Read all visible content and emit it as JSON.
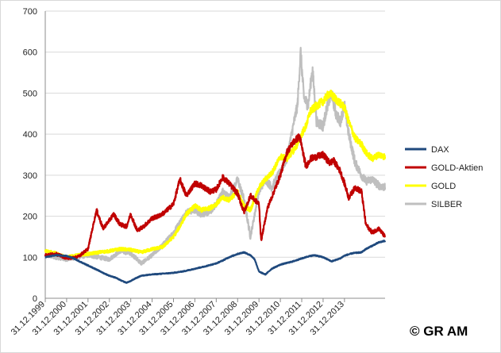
{
  "chart_data": {
    "type": "line",
    "title": "",
    "xlabel": "",
    "ylabel": "",
    "ylim": [
      0,
      700
    ],
    "yticks": [
      0,
      100,
      200,
      300,
      400,
      500,
      600,
      700
    ],
    "x_tick_labels": [
      "31.12.1999",
      "31.12.2000",
      "31.12.2001",
      "31.12.2002",
      "31.12.2003",
      "31.12.2004",
      "31.12.2005",
      "31.12.2006",
      "31.12.2007",
      "31.12.2008",
      "31.12.2009",
      "31.12.2010",
      "31.12.2011",
      "31.12.2012",
      "31.12.2013"
    ],
    "grid": true,
    "legend_position": "right",
    "series": [
      {
        "name": "DAX",
        "color": "#1f497d",
        "x": [
          1999.0,
          1999.5,
          2000.0,
          2000.3,
          2000.6,
          2001.0,
          2001.4,
          2001.7,
          2002.0,
          2002.3,
          2002.6,
          2002.8,
          2003.0,
          2003.2,
          2003.5,
          2003.8,
          2004.0,
          2004.5,
          2005.0,
          2005.5,
          2006.0,
          2006.5,
          2007.0,
          2007.3,
          2007.6,
          2008.0,
          2008.3,
          2008.6,
          2008.8,
          2009.0,
          2009.3,
          2009.6,
          2010.0,
          2010.3,
          2010.6,
          2011.0,
          2011.3,
          2011.6,
          2012.0,
          2012.4,
          2012.8,
          2013.0,
          2013.4,
          2013.8,
          2014.0,
          2014.3,
          2014.6,
          2014.9
        ],
        "values": [
          100,
          105,
          103,
          98,
          90,
          80,
          70,
          62,
          55,
          50,
          42,
          38,
          42,
          48,
          55,
          57,
          58,
          60,
          62,
          66,
          72,
          78,
          85,
          92,
          100,
          108,
          112,
          105,
          95,
          65,
          58,
          72,
          82,
          86,
          90,
          97,
          102,
          105,
          100,
          90,
          97,
          104,
          110,
          112,
          120,
          128,
          136,
          140
        ]
      },
      {
        "name": "GOLD-Aktien",
        "color": "#c00000",
        "x": [
          1999.0,
          1999.5,
          2000.0,
          2000.5,
          2001.0,
          2001.4,
          2001.7,
          2002.0,
          2002.2,
          2002.5,
          2002.8,
          2003.0,
          2003.3,
          2003.6,
          2003.8,
          2004.0,
          2004.3,
          2004.6,
          2005.0,
          2005.3,
          2005.6,
          2006.0,
          2006.3,
          2006.7,
          2007.0,
          2007.3,
          2007.6,
          2008.0,
          2008.3,
          2008.6,
          2009.0,
          2009.1,
          2009.4,
          2009.7,
          2010.0,
          2010.3,
          2010.6,
          2010.9,
          2011.2,
          2011.4,
          2011.7,
          2012.0,
          2012.3,
          2012.5,
          2012.8,
          2013.0,
          2013.2,
          2013.5,
          2013.8,
          2014.0,
          2014.3,
          2014.6,
          2014.9
        ],
        "values": [
          105,
          108,
          98,
          100,
          120,
          215,
          170,
          190,
          205,
          180,
          175,
          205,
          165,
          175,
          185,
          195,
          200,
          210,
          230,
          290,
          250,
          280,
          275,
          260,
          265,
          295,
          280,
          255,
          210,
          250,
          230,
          140,
          220,
          260,
          300,
          355,
          380,
          395,
          320,
          340,
          345,
          350,
          330,
          335,
          310,
          280,
          245,
          270,
          260,
          180,
          160,
          170,
          150
        ]
      },
      {
        "name": "GOLD",
        "color": "#ffff00",
        "x": [
          1999.0,
          1999.5,
          2000.0,
          2000.5,
          2001.0,
          2001.5,
          2002.0,
          2002.5,
          2003.0,
          2003.5,
          2004.0,
          2004.5,
          2005.0,
          2005.3,
          2005.6,
          2006.0,
          2006.3,
          2006.7,
          2007.0,
          2007.3,
          2007.6,
          2008.0,
          2008.3,
          2008.6,
          2009.0,
          2009.3,
          2009.6,
          2010.0,
          2010.3,
          2010.6,
          2010.8,
          2011.0,
          2011.2,
          2011.4,
          2011.7,
          2012.0,
          2012.3,
          2012.5,
          2012.8,
          2013.0,
          2013.2,
          2013.5,
          2013.8,
          2014.0,
          2014.3,
          2014.6,
          2014.9
        ],
        "values": [
          115,
          110,
          100,
          105,
          108,
          112,
          115,
          120,
          118,
          112,
          120,
          125,
          150,
          175,
          205,
          225,
          215,
          220,
          230,
          245,
          240,
          260,
          225,
          215,
          270,
          290,
          305,
          345,
          340,
          360,
          375,
          400,
          420,
          455,
          470,
          480,
          500,
          490,
          475,
          465,
          430,
          390,
          375,
          355,
          340,
          350,
          345
        ]
      },
      {
        "name": "SILBER",
        "color": "#bfbfbf",
        "x": [
          1999.0,
          1999.5,
          2000.0,
          2000.5,
          2001.0,
          2001.5,
          2002.0,
          2002.5,
          2003.0,
          2003.5,
          2004.0,
          2004.5,
          2005.0,
          2005.3,
          2005.6,
          2006.0,
          2006.3,
          2006.7,
          2007.0,
          2007.3,
          2007.6,
          2008.0,
          2008.3,
          2008.6,
          2009.0,
          2009.3,
          2009.6,
          2010.0,
          2010.3,
          2010.6,
          2010.8,
          2010.95,
          2011.1,
          2011.3,
          2011.5,
          2011.7,
          2012.0,
          2012.2,
          2012.4,
          2012.6,
          2012.8,
          2013.0,
          2013.2,
          2013.5,
          2013.8,
          2014.0,
          2014.3,
          2014.6,
          2014.9
        ],
        "values": [
          105,
          100,
          95,
          100,
          105,
          100,
          95,
          115,
          110,
          85,
          105,
          130,
          160,
          185,
          210,
          215,
          205,
          210,
          230,
          260,
          245,
          290,
          240,
          150,
          260,
          290,
          270,
          310,
          340,
          420,
          470,
          600,
          490,
          470,
          560,
          430,
          420,
          470,
          500,
          450,
          430,
          470,
          400,
          330,
          300,
          285,
          290,
          275,
          270
        ]
      }
    ]
  },
  "copyright": "© GR AM"
}
